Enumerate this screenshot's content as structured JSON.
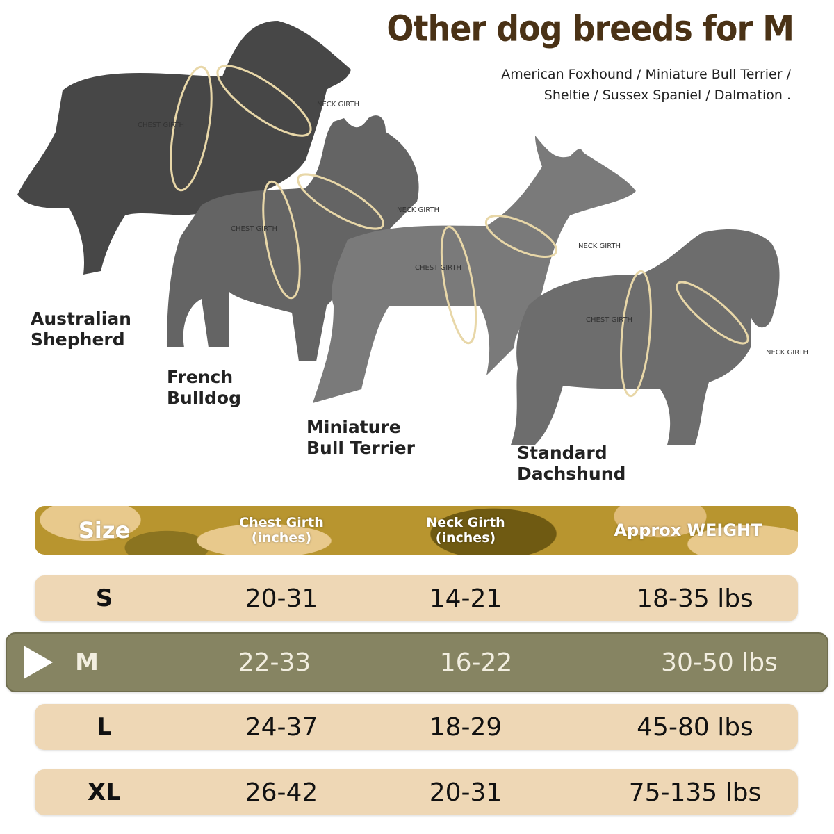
{
  "title": "Other dog breeds for M",
  "subtitle_lines": [
    "American Foxhound / Miniature Bull Terrier /",
    "Sheltie / Sussex Spaniel / Dalmation ."
  ],
  "girth_labels": {
    "chest": "CHEST GIRTH",
    "neck": "NECK GIRTH"
  },
  "breeds": [
    {
      "line1": "Australian",
      "line2": "Shepherd"
    },
    {
      "line1": "French",
      "line2": "Bulldog"
    },
    {
      "line1": "Miniature",
      "line2": "Bull Terrier"
    },
    {
      "line1": "Standard",
      "line2": "Dachshund"
    }
  ],
  "table": {
    "headers": {
      "size": "Size",
      "chest_1": "Chest Girth",
      "chest_2": "(inches)",
      "neck_1": "Neck Girth",
      "neck_2": "(inches)",
      "weight": "Approx WEIGHT"
    },
    "rows": [
      {
        "size": "S",
        "chest": "20-31",
        "neck": "14-21",
        "weight": "18-35 lbs"
      },
      {
        "size": "M",
        "chest": "22-33",
        "neck": "16-22",
        "weight": "30-50 lbs",
        "selected": true
      },
      {
        "size": "L",
        "chest": "24-37",
        "neck": "18-29",
        "weight": "45-80 lbs"
      },
      {
        "size": "XL",
        "chest": "26-42",
        "neck": "20-31",
        "weight": "75-135 lbs"
      }
    ]
  },
  "colors": {
    "title": "#4a3216",
    "row": "#eed7b5",
    "selected_row": "#868462",
    "camo": "#b8952f"
  }
}
